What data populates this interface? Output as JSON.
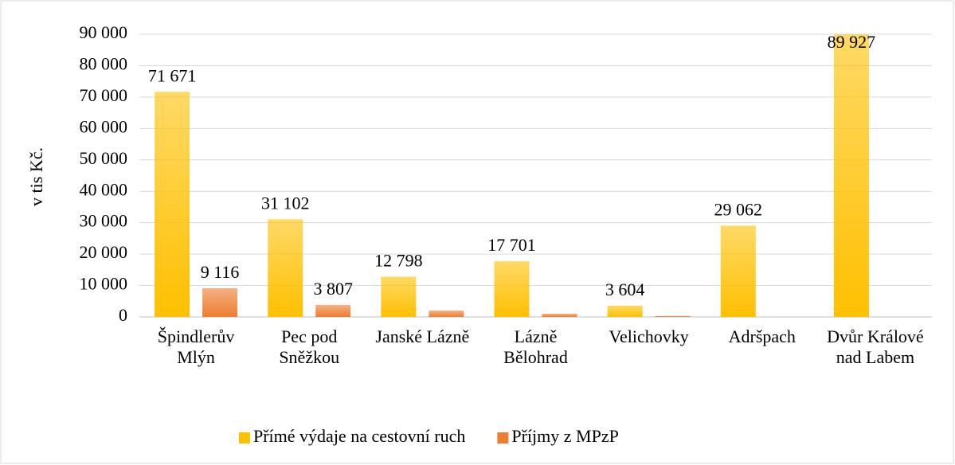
{
  "chart_data": {
    "type": "bar",
    "y_label": "v tis Kč.",
    "categories": [
      "Špindlerův Mlýn",
      "Pec pod Sněžkou",
      "Janské Lázně",
      "Lázně Bělohrad",
      "Velichovky",
      "Adršpach",
      "Dvůr Králové nad Labem"
    ],
    "series": [
      {
        "name": "Přímé výdaje na cestovní ruch",
        "color": "#ffc000",
        "values": [
          71671,
          31102,
          12798,
          17701,
          3604,
          29062,
          89927
        ],
        "value_labels": [
          "71 671",
          "31 102",
          "12 798",
          "17 701",
          "3 604",
          "29 062",
          "89 927"
        ]
      },
      {
        "name": "Příjmy z MPzP",
        "color": "#ed7d31",
        "values": [
          9116,
          3807,
          2000,
          1000,
          300,
          0,
          0
        ],
        "value_labels": [
          "9 116",
          "3 807",
          null,
          null,
          null,
          null,
          null
        ]
      }
    ],
    "ylim": [
      0,
      90000
    ],
    "yticks": [
      0,
      {
        "value": 10000,
        "label": "10 000"
      },
      {
        "value": 20000,
        "label": "20 000"
      },
      {
        "value": 30000,
        "label": "30 000"
      },
      {
        "value": 40000,
        "label": "40 000"
      },
      {
        "value": 50000,
        "label": "50 000"
      },
      {
        "value": 60000,
        "label": "60 000"
      },
      {
        "value": 70000,
        "label": "70 000"
      },
      {
        "value": 80000,
        "label": "80 000"
      },
      {
        "value": 90000,
        "label": "90 000"
      }
    ],
    "grid": true,
    "legend": "bottom"
  }
}
